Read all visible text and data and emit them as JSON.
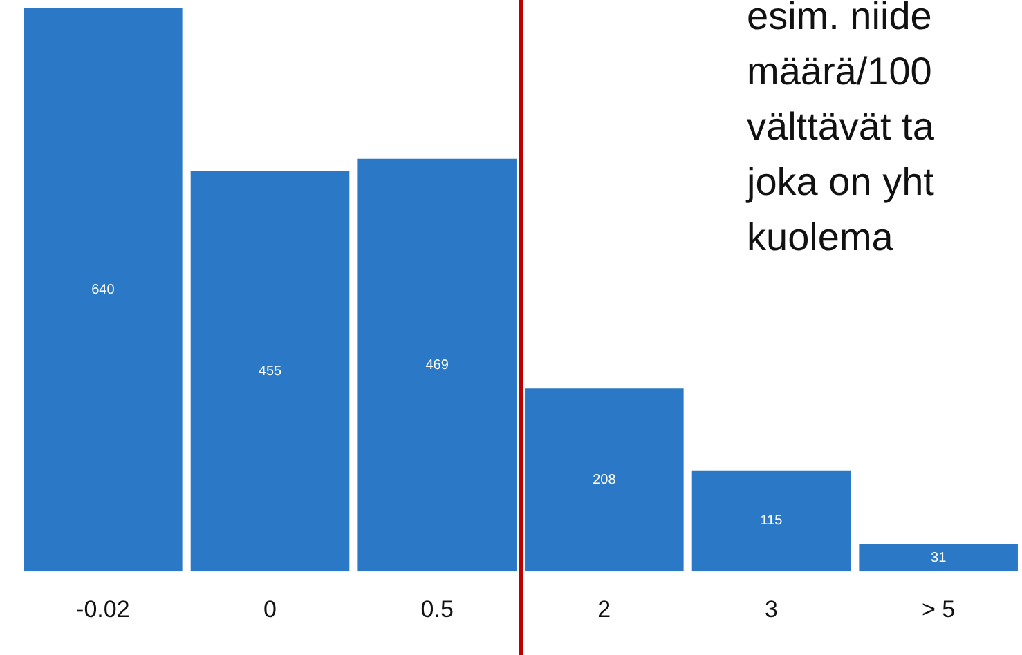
{
  "chart_data": {
    "type": "bar",
    "categories": [
      "-0.02",
      "0",
      "0.5",
      "2",
      "3",
      "> 5"
    ],
    "values": [
      640,
      455,
      469,
      208,
      115,
      31
    ],
    "color": "#2a78c6",
    "data_labels": true,
    "grid": false,
    "legend": false,
    "tick_labels": "x",
    "annotations": [
      "esim. niide\nmäärä/100\nvälttävät ta\njoka on yht\nkuolema"
    ]
  }
}
